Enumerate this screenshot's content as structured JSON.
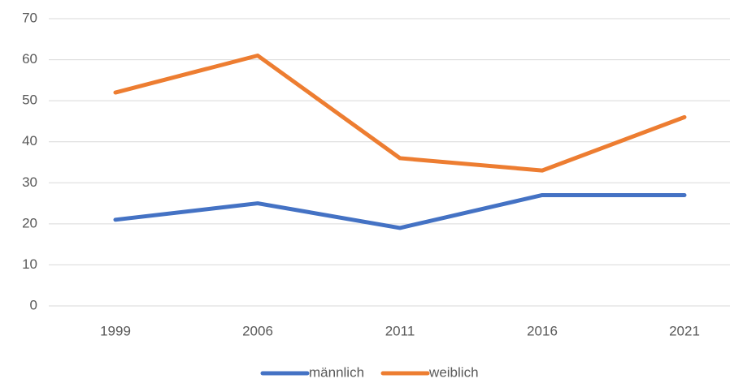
{
  "chart_data": {
    "type": "line",
    "categories": [
      "1999",
      "2006",
      "2011",
      "2016",
      "2021"
    ],
    "series": [
      {
        "name": "männlich",
        "color": "#4472c4",
        "values": [
          21,
          25,
          19,
          27,
          27
        ]
      },
      {
        "name": "weiblich",
        "color": "#ed7d31",
        "values": [
          52,
          61,
          36,
          33,
          46
        ]
      }
    ],
    "ylim": [
      0,
      70
    ],
    "yticks": [
      0,
      10,
      20,
      30,
      40,
      50,
      60,
      70
    ],
    "grid": true,
    "legend": "bottom"
  }
}
